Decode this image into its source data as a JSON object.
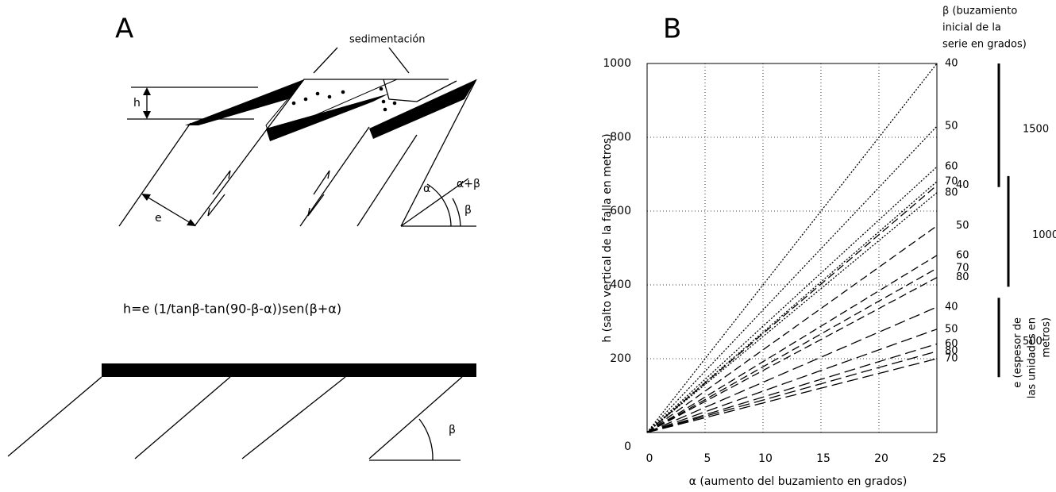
{
  "panel_a": {
    "label": "A",
    "sedimentation": "sedimentación",
    "h": "h",
    "e": "e",
    "alpha": "α",
    "alpha_beta": "α+β",
    "beta_top": "β",
    "formula": "h=e (1/tanβ-tan(90-β-α))sen(β+α)",
    "beta_bottom": "β"
  },
  "chart_data": {
    "type": "line",
    "panel_label": "B",
    "xlabel": "α (aumento del buzamiento en grados)",
    "ylabel": "h (salto vertical de la falla  en metros)",
    "legend_title": [
      "β (buzamiento",
      "inicial de la",
      "serie en grados)"
    ],
    "thickness_title": [
      "e (espesor de",
      "las unidades  en",
      "metros)"
    ],
    "x": [
      0,
      25
    ],
    "xlim": [
      0,
      25
    ],
    "ylim": [
      0,
      1000
    ],
    "xticks": [
      0,
      5,
      10,
      15,
      20,
      25
    ],
    "yticks": [
      0,
      200,
      400,
      600,
      800,
      1000
    ],
    "grid": true,
    "series": [
      {
        "name": "40",
        "color": "#000",
        "dash": "2,2",
        "values": [
          0,
          1000
        ]
      },
      {
        "name": "50",
        "color": "#000",
        "dash": "2,2",
        "values": [
          0,
          830
        ]
      },
      {
        "name": "60",
        "color": "#000",
        "dash": "2,2",
        "values": [
          0,
          720
        ]
      },
      {
        "name": "70",
        "color": "#000",
        "dash": "2,2",
        "values": [
          0,
          680
        ]
      },
      {
        "name": "80",
        "color": "#000",
        "dash": "2,2",
        "values": [
          0,
          650
        ]
      },
      {
        "name": "40",
        "color": "#000",
        "dash": "10,5",
        "values": [
          0,
          670
        ]
      },
      {
        "name": "50",
        "color": "#000",
        "dash": "10,5",
        "values": [
          0,
          560
        ]
      },
      {
        "name": "60",
        "color": "#000",
        "dash": "10,5",
        "values": [
          0,
          480
        ]
      },
      {
        "name": "70",
        "color": "#000",
        "dash": "10,5",
        "values": [
          0,
          445
        ]
      },
      {
        "name": "80",
        "color": "#000",
        "dash": "10,5",
        "values": [
          0,
          420
        ]
      },
      {
        "name": "40",
        "color": "#000",
        "dash": "14,6",
        "values": [
          0,
          340
        ]
      },
      {
        "name": "50",
        "color": "#000",
        "dash": "14,6",
        "values": [
          0,
          280
        ]
      },
      {
        "name": "60",
        "color": "#000",
        "dash": "14,6",
        "values": [
          0,
          240
        ]
      },
      {
        "name": "80",
        "color": "#000",
        "dash": "14,6",
        "values": [
          0,
          220
        ]
      },
      {
        "name": "70",
        "color": "#000",
        "dash": "14,6",
        "values": [
          0,
          200
        ]
      }
    ],
    "thickness_groups": [
      {
        "label": "1500",
        "range": [
          1000,
          665
        ]
      },
      {
        "label": "1000",
        "range": [
          695,
          395
        ]
      },
      {
        "label": "500",
        "range": [
          365,
          150
        ]
      }
    ]
  }
}
